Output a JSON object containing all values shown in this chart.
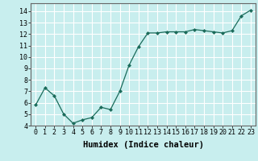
{
  "x": [
    0,
    1,
    2,
    3,
    4,
    5,
    6,
    7,
    8,
    9,
    10,
    11,
    12,
    13,
    14,
    15,
    16,
    17,
    18,
    19,
    20,
    21,
    22,
    23
  ],
  "y": [
    5.8,
    7.3,
    6.6,
    5.0,
    4.2,
    4.5,
    4.7,
    5.6,
    5.4,
    7.0,
    9.3,
    10.9,
    12.1,
    12.1,
    12.2,
    12.2,
    12.2,
    12.4,
    12.3,
    12.2,
    12.1,
    12.3,
    13.6,
    14.1
  ],
  "line_color": "#1a6b5a",
  "marker_color": "#1a6b5a",
  "bg_color": "#c8eeee",
  "grid_color": "#ffffff",
  "xlabel": "Humidex (Indice chaleur)",
  "xlim": [
    -0.5,
    23.5
  ],
  "ylim": [
    4,
    14.7
  ],
  "yticks": [
    4,
    5,
    6,
    7,
    8,
    9,
    10,
    11,
    12,
    13,
    14
  ],
  "xticks": [
    0,
    1,
    2,
    3,
    4,
    5,
    6,
    7,
    8,
    9,
    10,
    11,
    12,
    13,
    14,
    15,
    16,
    17,
    18,
    19,
    20,
    21,
    22,
    23
  ],
  "tick_fontsize": 6,
  "label_fontsize": 7.5
}
